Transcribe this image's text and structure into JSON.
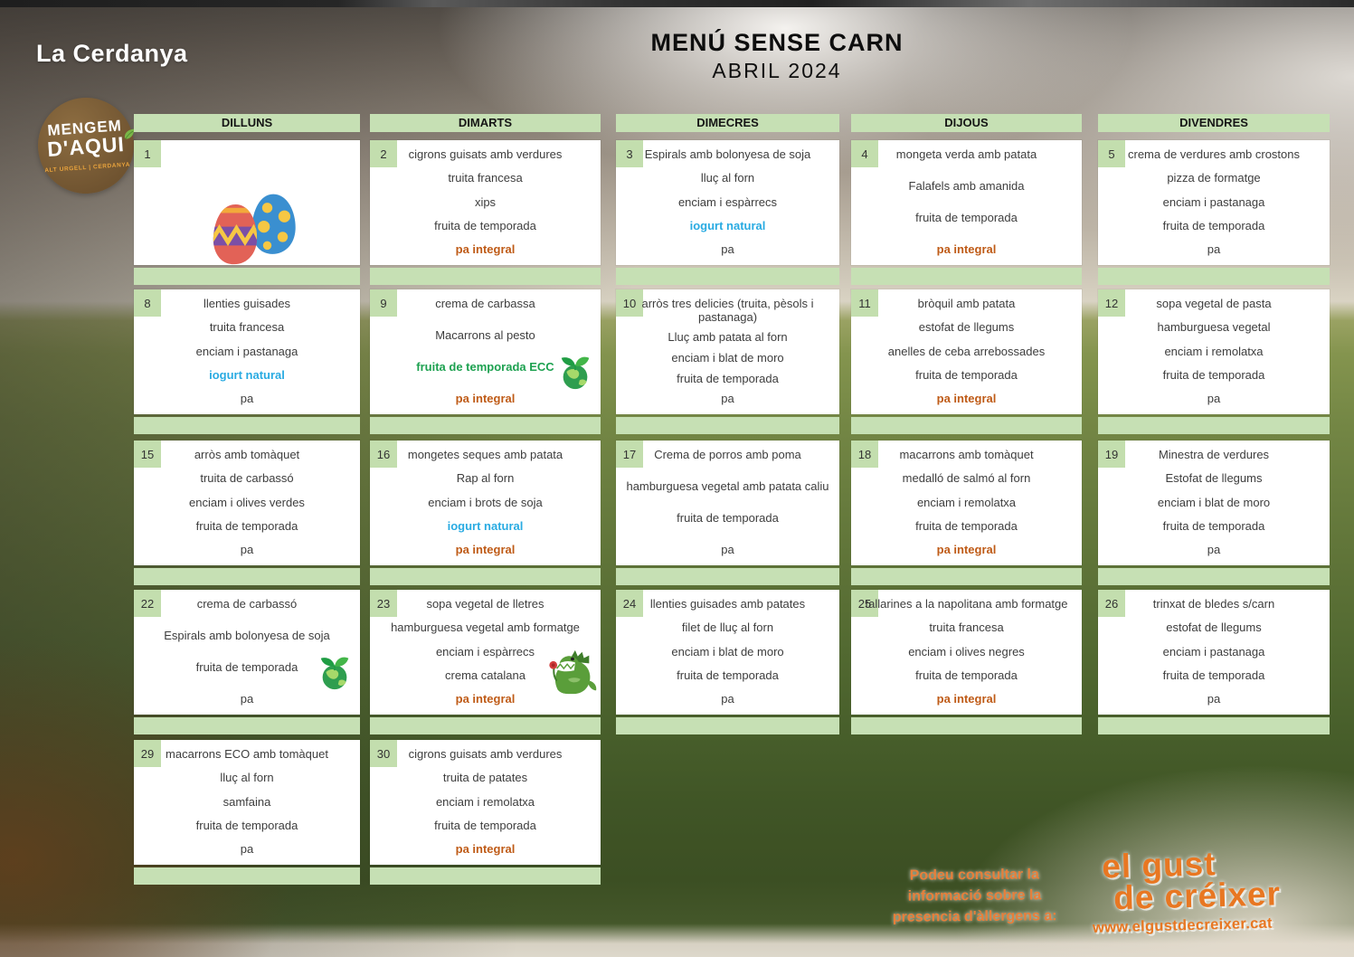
{
  "header": {
    "location": "La Cerdanya",
    "title": "MENÚ SENSE CARN",
    "month": "ABRIL 2024"
  },
  "logo": {
    "line1": "MENGEM",
    "line2": "D'AQUI",
    "tagline": "ALT URGELL | CERDANYA"
  },
  "colors": {
    "cell_green": "#c6e0b4",
    "accent_brown": "#bf5b17",
    "accent_blue": "#29abe2",
    "accent_green": "#1da150",
    "brand_orange": "#e87722"
  },
  "calendar": {
    "day_headers": [
      "DILLUNS",
      "DIMARTS",
      "DIMECRES",
      "DIJOUS",
      "DIVENDRES"
    ],
    "weeks": [
      {
        "days": [
          {
            "num": "1",
            "icon": "easter-eggs",
            "items": []
          },
          {
            "num": "2",
            "items": [
              {
                "text": "cigrons guisats amb verdures"
              },
              {
                "text": "truita francesa"
              },
              {
                "text": "xips"
              },
              {
                "text": "fruita de temporada"
              },
              {
                "text": "pa integral",
                "style": "brown"
              }
            ]
          },
          {
            "num": "3",
            "items": [
              {
                "text": "Espirals amb bolonyesa de soja"
              },
              {
                "text": "lluç al forn"
              },
              {
                "text": "enciam i espàrrecs"
              },
              {
                "text": "iogurt natural",
                "style": "blue"
              },
              {
                "text": "pa"
              }
            ]
          },
          {
            "num": "4",
            "items": [
              {
                "text": "mongeta verda amb patata"
              },
              {
                "text": "Falafels amb amanida"
              },
              {
                "text": "fruita de temporada"
              },
              {
                "text": "pa integral",
                "style": "brown"
              }
            ]
          },
          {
            "num": "5",
            "items": [
              {
                "text": "crema de verdures amb crostons"
              },
              {
                "text": "pizza de formatge"
              },
              {
                "text": "enciam i pastanaga"
              },
              {
                "text": "fruita de temporada"
              },
              {
                "text": "pa"
              }
            ]
          }
        ]
      },
      {
        "days": [
          {
            "num": "8",
            "items": [
              {
                "text": "llenties guisades"
              },
              {
                "text": "truita francesa"
              },
              {
                "text": "enciam i pastanaga"
              },
              {
                "text": "iogurt natural",
                "style": "blue"
              },
              {
                "text": "pa"
              }
            ]
          },
          {
            "num": "9",
            "icon": "eco",
            "items": [
              {
                "text": "crema de carbassa"
              },
              {
                "text": "Macarrons al pesto"
              },
              {
                "text": "fruita de temporada ECC",
                "style": "green"
              },
              {
                "text": "pa integral",
                "style": "brown"
              }
            ]
          },
          {
            "num": "10",
            "items": [
              {
                "text": "arròs tres delicies (truita, pèsols i pastanaga)"
              },
              {
                "text": "Lluç amb patata al forn"
              },
              {
                "text": "enciam i blat de moro"
              },
              {
                "text": "fruita de temporada"
              },
              {
                "text": "pa"
              }
            ]
          },
          {
            "num": "11",
            "items": [
              {
                "text": "bròquil amb patata"
              },
              {
                "text": "estofat de llegums"
              },
              {
                "text": "anelles de ceba arrebossades"
              },
              {
                "text": "fruita de temporada"
              },
              {
                "text": "pa integral",
                "style": "brown"
              }
            ]
          },
          {
            "num": "12",
            "items": [
              {
                "text": "sopa vegetal de pasta"
              },
              {
                "text": "hamburguesa vegetal"
              },
              {
                "text": "enciam i remolatxa"
              },
              {
                "text": "fruita de temporada"
              },
              {
                "text": "pa"
              }
            ]
          }
        ]
      },
      {
        "days": [
          {
            "num": "15",
            "items": [
              {
                "text": "arròs amb tomàquet"
              },
              {
                "text": "truita de carbassó"
              },
              {
                "text": "enciam i olives verdes"
              },
              {
                "text": "fruita de temporada"
              },
              {
                "text": "pa"
              }
            ]
          },
          {
            "num": "16",
            "items": [
              {
                "text": "mongetes seques amb patata"
              },
              {
                "text": "Rap al forn"
              },
              {
                "text": "enciam i brots de soja"
              },
              {
                "text": "iogurt natural",
                "style": "blue"
              },
              {
                "text": "pa integral",
                "style": "brown"
              }
            ]
          },
          {
            "num": "17",
            "items": [
              {
                "text": "Crema de porros amb poma"
              },
              {
                "text": "hamburguesa vegetal amb patata caliu"
              },
              {
                "text": "fruita de temporada"
              },
              {
                "text": "pa"
              }
            ]
          },
          {
            "num": "18",
            "items": [
              {
                "text": "macarrons amb tomàquet"
              },
              {
                "text": "medalló de salmó al forn"
              },
              {
                "text": "enciam i remolatxa"
              },
              {
                "text": "fruita de temporada"
              },
              {
                "text": "pa integral",
                "style": "brown"
              }
            ]
          },
          {
            "num": "19",
            "items": [
              {
                "text": "Minestra de verdures"
              },
              {
                "text": "Estofat de llegums"
              },
              {
                "text": "enciam i blat de moro"
              },
              {
                "text": "fruita de temporada"
              },
              {
                "text": "pa"
              }
            ]
          }
        ]
      },
      {
        "days": [
          {
            "num": "22",
            "icon": "eco",
            "items": [
              {
                "text": "crema de carbassó"
              },
              {
                "text": "Espirals amb bolonyesa de soja"
              },
              {
                "text": "fruita de temporada"
              },
              {
                "text": "pa"
              }
            ]
          },
          {
            "num": "23",
            "icon": "dragon",
            "items": [
              {
                "text": "sopa vegetal de lletres"
              },
              {
                "text": "hamburguesa vegetal amb formatge"
              },
              {
                "text": "enciam i espàrrecs"
              },
              {
                "text": "crema catalana"
              },
              {
                "text": "pa integral",
                "style": "brown"
              }
            ]
          },
          {
            "num": "24",
            "items": [
              {
                "text": "llenties guisades amb patates"
              },
              {
                "text": "filet de lluç al forn"
              },
              {
                "text": "enciam i blat de moro"
              },
              {
                "text": "fruita de temporada"
              },
              {
                "text": "pa"
              }
            ]
          },
          {
            "num": "25",
            "items": [
              {
                "text": "tallarines a la napolitana amb formatge"
              },
              {
                "text": "truita francesa"
              },
              {
                "text": "enciam i olives negres"
              },
              {
                "text": "fruita de temporada"
              },
              {
                "text": "pa integral",
                "style": "brown"
              }
            ]
          },
          {
            "num": "26",
            "items": [
              {
                "text": "trinxat de bledes s/carn"
              },
              {
                "text": "estofat de llegums"
              },
              {
                "text": "enciam i pastanaga"
              },
              {
                "text": "fruita de temporada"
              },
              {
                "text": "pa"
              }
            ]
          }
        ]
      },
      {
        "days": [
          {
            "num": "29",
            "items": [
              {
                "text": "macarrons ECO amb tomàquet"
              },
              {
                "text": "lluç al forn"
              },
              {
                "text": "samfaina"
              },
              {
                "text": "fruita de temporada"
              },
              {
                "text": "pa"
              }
            ]
          },
          {
            "num": "30",
            "items": [
              {
                "text": "cigrons guisats amb verdures"
              },
              {
                "text": "truita de patates"
              },
              {
                "text": "enciam i remolatxa"
              },
              {
                "text": "fruita de temporada"
              },
              {
                "text": "pa integral",
                "style": "brown"
              }
            ]
          },
          null,
          null,
          null
        ]
      }
    ]
  },
  "footer": {
    "allergen_note": [
      "Podeu consultar la",
      "informació sobre la",
      "presencia d'àllergens a:"
    ],
    "brand": {
      "line1": "el gust",
      "line2": "de créixer",
      "url": "www.elgustdecreixer.cat"
    }
  }
}
